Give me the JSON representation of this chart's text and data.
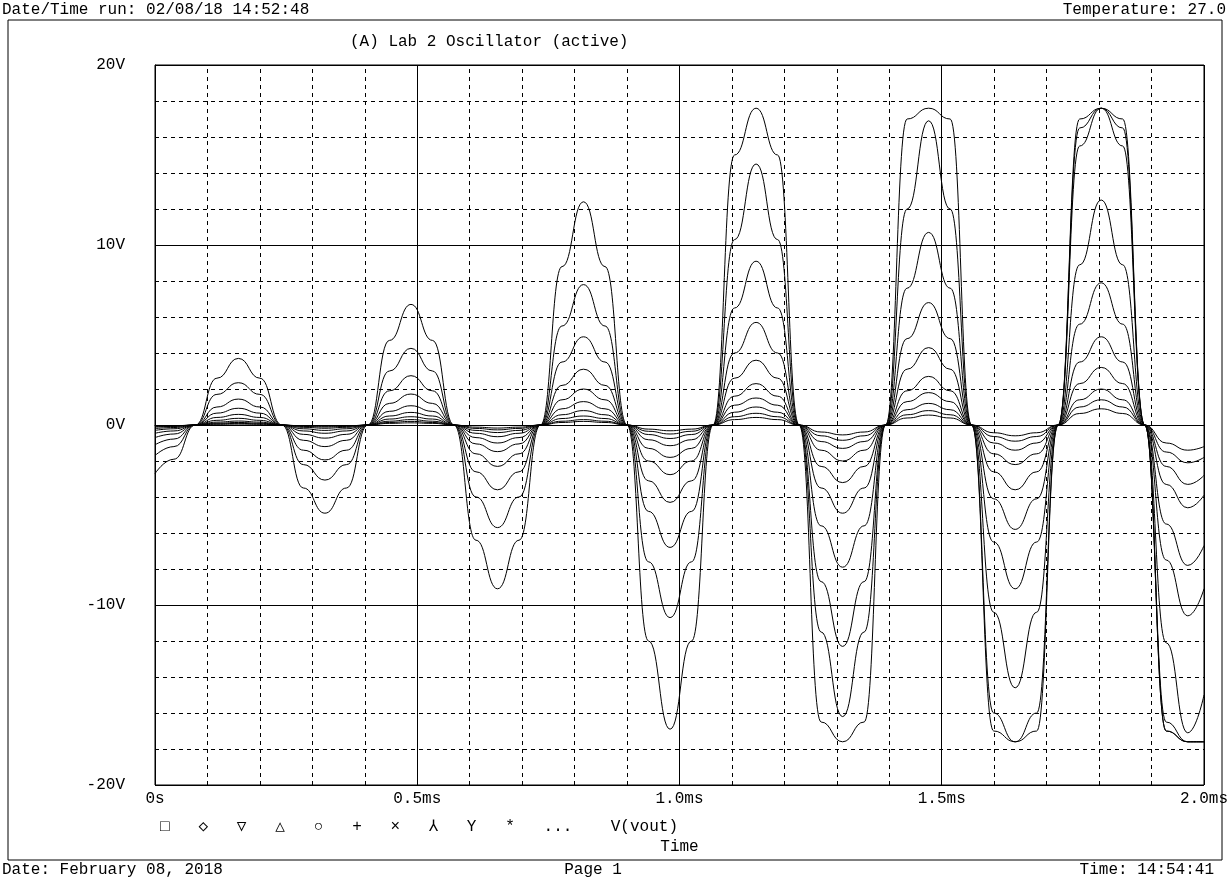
{
  "chart_data": {
    "type": "line",
    "title": "(A) Lab 2 Oscillator (active)",
    "xlabel": "Time",
    "annotations": [
      "Date/Time run: 02/08/18 14:52:48",
      "Temperature: 27.0",
      "□   ◇   ▽   △   ○   +   ×   ⅄   Y   *   ...    V(vout)",
      "Date: February 08, 2018",
      "Page 1",
      "Time: 14:54:41"
    ],
    "x": [
      0,
      0.036,
      0.077,
      0.118,
      0.159,
      0.2,
      0.242,
      0.283,
      0.324,
      0.365,
      0.406,
      0.447,
      0.488,
      0.529,
      0.57,
      0.612,
      0.653,
      0.694,
      0.735,
      0.776,
      0.817,
      0.858,
      0.9,
      0.941,
      0.982,
      1.023,
      1.064,
      1.105,
      1.146,
      1.187,
      1.228,
      1.27,
      1.311,
      1.352,
      1.393,
      1.434,
      1.475,
      1.516,
      1.557,
      1.599,
      1.64,
      1.681,
      1.722,
      1.763,
      1.804,
      1.845,
      1.887,
      1.928,
      1.969,
      2.0
    ],
    "xlim": [
      0,
      2
    ],
    "ylim": [
      -20,
      20
    ],
    "xticks": [
      {
        "value": 0,
        "label": "0s"
      },
      {
        "value": 0.1,
        "label": null
      },
      {
        "value": 0.2,
        "label": null
      },
      {
        "value": 0.3,
        "label": null
      },
      {
        "value": 0.4,
        "label": null
      },
      {
        "value": 0.5,
        "label": "0.5ms"
      },
      {
        "value": 0.6,
        "label": null
      },
      {
        "value": 0.7,
        "label": null
      },
      {
        "value": 0.8,
        "label": null
      },
      {
        "value": 0.9,
        "label": null
      },
      {
        "value": 1.0,
        "label": "1.0ms"
      },
      {
        "value": 1.1,
        "label": null
      },
      {
        "value": 1.2,
        "label": null
      },
      {
        "value": 1.3,
        "label": null
      },
      {
        "value": 1.4,
        "label": null
      },
      {
        "value": 1.5,
        "label": "1.5ms"
      },
      {
        "value": 1.6,
        "label": null
      },
      {
        "value": 1.7,
        "label": null
      },
      {
        "value": 1.8,
        "label": null
      },
      {
        "value": 1.9,
        "label": null
      },
      {
        "value": 2.0,
        "label": "2.0ms"
      }
    ],
    "yticks": [
      {
        "value": -20,
        "label": "-20V"
      },
      {
        "value": -18,
        "label": null
      },
      {
        "value": -16,
        "label": null
      },
      {
        "value": -14,
        "label": null
      },
      {
        "value": -12,
        "label": null
      },
      {
        "value": -10,
        "label": "-10V"
      },
      {
        "value": -8,
        "label": null
      },
      {
        "value": -6,
        "label": null
      },
      {
        "value": -4,
        "label": null
      },
      {
        "value": -2,
        "label": null
      },
      {
        "value": 0,
        "label": "0V"
      },
      {
        "value": 2,
        "label": null
      },
      {
        "value": 4,
        "label": null
      },
      {
        "value": 6,
        "label": null
      },
      {
        "value": 8,
        "label": null
      },
      {
        "value": 10,
        "label": "10V"
      },
      {
        "value": 12,
        "label": null
      },
      {
        "value": 14,
        "label": null
      },
      {
        "value": 16,
        "label": null
      },
      {
        "value": 18,
        "label": null
      },
      {
        "value": 20,
        "label": "20V"
      }
    ],
    "grid": true,
    "series": [
      {
        "color": "#000000",
        "values": [
          -2.7,
          -1.9,
          0,
          2.6,
          3.7,
          2.6,
          0,
          -3.5,
          -4.9,
          -3.5,
          0,
          4.7,
          6.7,
          4.7,
          0,
          -6.4,
          -9.1,
          -6.4,
          0,
          8.8,
          12.4,
          8.8,
          0,
          -12,
          -16.9,
          -12,
          0,
          15,
          17.6,
          15,
          0,
          -16.5,
          -17.6,
          -16.5,
          0,
          17,
          17.6,
          17,
          0,
          -17,
          -17.6,
          -17,
          0,
          17,
          17.6,
          17,
          0,
          -17,
          -17.6,
          -17.6
        ]
      },
      {
        "color": "#000000",
        "values": [
          -1.7,
          -1.2,
          0,
          1.7,
          2.35,
          1.7,
          0,
          -2.2,
          -3.06,
          -2.2,
          0,
          3.0,
          4.26,
          3.0,
          0,
          -4.0,
          -5.7,
          -4.0,
          0,
          5.5,
          7.8,
          5.5,
          0,
          -7.6,
          -10.7,
          -7.6,
          0,
          10.3,
          14.5,
          10.3,
          0,
          -11.5,
          -16.2,
          -11.5,
          0,
          12.0,
          16.9,
          12.0,
          0,
          -16,
          -17.6,
          -16,
          0,
          16.5,
          17.6,
          16.5,
          0,
          -17,
          -17.6,
          -17.6
        ]
      },
      {
        "color": "#000000",
        "values": [
          -1.1,
          -0.78,
          0,
          1.0,
          1.44,
          1.0,
          0,
          -1.4,
          -1.94,
          -1.4,
          0,
          1.9,
          2.74,
          1.9,
          0,
          -2.6,
          -3.6,
          -2.6,
          0,
          3.5,
          4.9,
          3.5,
          0,
          -4.8,
          -6.8,
          -4.8,
          0,
          6.5,
          9.1,
          6.5,
          0,
          -8.7,
          -12.3,
          -8.7,
          0,
          7.6,
          10.7,
          7.6,
          0,
          -10.4,
          -14.6,
          -10.4,
          0,
          15.5,
          17.6,
          15.5,
          0,
          -16.5,
          -17.6,
          -17.6
        ]
      },
      {
        "color": "#000000",
        "values": [
          -0.7,
          -0.5,
          0,
          0.66,
          0.93,
          0.66,
          0,
          -0.85,
          -1.2,
          -0.85,
          0,
          1.2,
          1.72,
          1.2,
          0,
          -1.6,
          -2.3,
          -1.6,
          0,
          2.2,
          3.1,
          2.2,
          0,
          -3.1,
          -4.3,
          -3.1,
          0,
          4.0,
          5.7,
          4.0,
          0,
          -5.6,
          -7.9,
          -5.6,
          0,
          4.8,
          6.8,
          4.8,
          0,
          -6.5,
          -9.1,
          -6.5,
          0,
          8.9,
          12.5,
          8.9,
          0,
          -12.1,
          -17.1,
          -15.0
        ]
      },
      {
        "color": "#000000",
        "values": [
          -0.46,
          -0.33,
          0,
          0.42,
          0.59,
          0.42,
          0,
          -0.52,
          -0.73,
          -0.52,
          0,
          0.76,
          1.07,
          0.76,
          0,
          -1.05,
          -1.48,
          -1.05,
          0,
          1.4,
          2.0,
          1.4,
          0,
          -2.0,
          -2.76,
          -2.0,
          0,
          2.6,
          3.6,
          2.6,
          0,
          -3.5,
          -4.9,
          -3.5,
          0,
          3.1,
          4.3,
          3.1,
          0,
          -4.1,
          -5.8,
          -4.1,
          0,
          5.6,
          7.9,
          5.6,
          0,
          -7.5,
          -10.6,
          -9.1
        ]
      },
      {
        "color": "#000000",
        "values": [
          -0.3,
          -0.21,
          0,
          0.26,
          0.37,
          0.26,
          0,
          -0.33,
          -0.46,
          -0.33,
          0,
          0.5,
          0.7,
          0.5,
          0,
          -0.7,
          -1.0,
          -0.7,
          0,
          0.9,
          1.3,
          0.9,
          0,
          -1.3,
          -1.8,
          -1.3,
          0,
          1.6,
          2.3,
          1.6,
          0,
          -2.3,
          -3.2,
          -2.3,
          0,
          1.9,
          2.7,
          1.9,
          0,
          -2.6,
          -3.6,
          -2.6,
          0,
          3.5,
          4.9,
          3.5,
          0,
          -5.5,
          -7.8,
          -6.7
        ]
      },
      {
        "color": "#000000",
        "values": [
          -0.2,
          -0.14,
          0,
          0.16,
          0.22,
          0.16,
          0,
          -0.21,
          -0.3,
          -0.21,
          0,
          0.33,
          0.46,
          0.33,
          0,
          -0.46,
          -0.65,
          -0.46,
          0,
          0.57,
          0.8,
          0.57,
          0,
          -0.82,
          -1.15,
          -0.82,
          0,
          1.1,
          1.5,
          1.1,
          0,
          -1.4,
          -2.0,
          -1.4,
          0,
          1.3,
          1.8,
          1.3,
          0,
          -1.6,
          -2.2,
          -1.6,
          0,
          2.3,
          3.2,
          2.3,
          0,
          -3.3,
          -4.6,
          -3.9
        ]
      },
      {
        "color": "#000000",
        "values": [
          -0.12,
          -0.08,
          0,
          0.1,
          0.14,
          0.1,
          0,
          -0.13,
          -0.18,
          -0.13,
          0,
          0.21,
          0.3,
          0.21,
          0,
          -0.3,
          -0.42,
          -0.3,
          0,
          0.36,
          0.5,
          0.36,
          0,
          -0.53,
          -0.75,
          -0.53,
          0,
          0.71,
          1.0,
          0.71,
          0,
          -0.92,
          -1.3,
          -0.92,
          0,
          0.85,
          1.2,
          0.85,
          0,
          -1.0,
          -1.4,
          -1.0,
          0,
          1.4,
          2.0,
          1.4,
          0,
          -2.3,
          -3.3,
          -2.8
        ]
      },
      {
        "color": "#000000",
        "values": [
          -0.08,
          -0.06,
          0,
          0.06,
          0.09,
          0.06,
          0,
          -0.08,
          -0.11,
          -0.08,
          0,
          0.14,
          0.2,
          0.14,
          0,
          -0.19,
          -0.27,
          -0.19,
          0,
          0.21,
          0.3,
          0.21,
          0,
          -0.35,
          -0.5,
          -0.35,
          0,
          0.46,
          0.65,
          0.46,
          0,
          -0.6,
          -0.85,
          -0.6,
          0,
          0.57,
          0.8,
          0.57,
          0,
          -0.64,
          -0.9,
          -0.64,
          0,
          1.0,
          1.4,
          1.0,
          0,
          -1.5,
          -2.1,
          -1.8
        ]
      },
      {
        "color": "#000000",
        "values": [
          -0.05,
          -0.04,
          0,
          0.04,
          0.05,
          0.04,
          0,
          -0.05,
          -0.07,
          -0.05,
          0,
          0.09,
          0.12,
          0.09,
          0,
          -0.12,
          -0.17,
          -0.12,
          0,
          0.14,
          0.2,
          0.14,
          0,
          -0.23,
          -0.32,
          -0.23,
          0,
          0.3,
          0.42,
          0.3,
          0,
          -0.39,
          -0.55,
          -0.39,
          0,
          0.39,
          0.55,
          0.39,
          0,
          -0.43,
          -0.6,
          -0.43,
          0,
          0.64,
          0.9,
          0.64,
          0,
          -1.0,
          -1.4,
          -1.2
        ]
      }
    ]
  }
}
